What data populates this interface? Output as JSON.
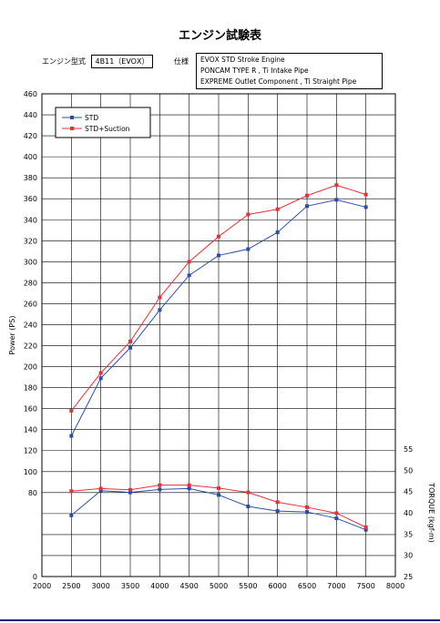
{
  "title": "エンジン試験表",
  "engine": {
    "label": "エンジン型式",
    "value": "4B11（EVOⅩ）"
  },
  "spec": {
    "label": "仕様",
    "lines": [
      "EVOⅩ STD Stroke Engine",
      "PONCAM TYPE R , Ti Intake Pipe",
      "EXPREME Outlet Component , Ti Straight Pipe"
    ]
  },
  "colors": {
    "std": "#2a4ea8",
    "suction": "#e8303a",
    "frame": "#000000"
  },
  "chart_data": {
    "type": "line",
    "x": [
      2500,
      3000,
      3500,
      4000,
      4500,
      5000,
      5500,
      6000,
      6500,
      7000,
      7500
    ],
    "xlim": [
      2000,
      8000
    ],
    "x_ticks": [
      "2000",
      "2500",
      "3000",
      "3500",
      "4000",
      "4500",
      "5000",
      "5500",
      "6000",
      "6500",
      "7000",
      "7500",
      "8000"
    ],
    "ylabel": "Power (PS)",
    "ylim": [
      0,
      460
    ],
    "y_ticks": [
      "0",
      "20",
      "40",
      "60",
      "80",
      "100",
      "120",
      "140",
      "160",
      "180",
      "200",
      "220",
      "240",
      "260",
      "280",
      "300",
      "320",
      "340",
      "360",
      "380",
      "400",
      "420",
      "440",
      "460"
    ],
    "y2label": "TORQUE (kgf-m)",
    "y2lim": [
      25,
      55
    ],
    "y2_ticks": [
      "25",
      "30",
      "35",
      "40",
      "45",
      "50",
      "55"
    ],
    "legend_position": "top-left",
    "power_series": [
      {
        "name": "STD",
        "values": [
          134,
          189,
          218,
          254,
          287,
          306,
          312,
          328,
          353,
          359,
          352
        ]
      },
      {
        "name": "STD+Suction",
        "values": [
          158,
          194,
          224,
          266,
          300,
          324,
          345,
          350,
          363,
          373,
          364
        ]
      }
    ],
    "torque_series": [
      {
        "name": "STD",
        "values": [
          39.4,
          45.2,
          44.8,
          45.5,
          45.7,
          44.2,
          41.5,
          40.4,
          40.2,
          38.7,
          36.0
        ]
      },
      {
        "name": "STD+Suction",
        "values": [
          45.1,
          45.7,
          45.4,
          46.5,
          46.5,
          45.8,
          44.8,
          42.5,
          41.3,
          39.9,
          36.6
        ]
      }
    ]
  }
}
